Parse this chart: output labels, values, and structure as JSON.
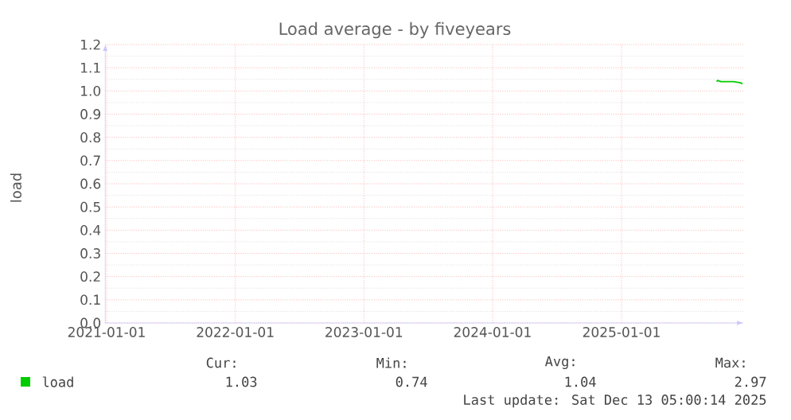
{
  "chart_data": {
    "type": "line",
    "title": "Load average - by fiveyears",
    "ylabel": "load",
    "x": [
      "2025-09-28",
      "2025-10-01",
      "2025-10-10",
      "2025-11-15",
      "2025-12-05",
      "2025-12-10"
    ],
    "series": [
      {
        "name": "load",
        "color": "#00cc00",
        "values": [
          1.04,
          1.045,
          1.04,
          1.04,
          1.035,
          1.03
        ]
      }
    ],
    "xlim": [
      "2020-12-28",
      "2025-12-13"
    ],
    "xticks": [
      {
        "value": "2021-01-01",
        "label": "2021-01-01"
      },
      {
        "value": "2022-01-01",
        "label": "2022-01-01"
      },
      {
        "value": "2023-01-01",
        "label": "2023-01-01"
      },
      {
        "value": "2024-01-01",
        "label": "2024-01-01"
      },
      {
        "value": "2025-01-01",
        "label": "2025-01-01"
      }
    ],
    "ylim": [
      0,
      1.2
    ],
    "yticks": [
      {
        "value": 0,
        "label": "0.0"
      },
      0.1,
      0.2,
      0.3,
      0.4,
      0.5,
      0.6,
      0.7,
      0.8,
      0.9,
      {
        "value": 1,
        "label": "1.0"
      },
      1.1,
      1.2
    ],
    "grid": true,
    "legend": "bottom",
    "marker": "none",
    "line_style": "solid",
    "annotations": [
      "Cur:",
      "Min:",
      "Avg:",
      "Max:",
      "1.03",
      "0.74",
      "1.04",
      "2.97",
      "Last update: Sat Dec 13 05:00:14 2025"
    ]
  }
}
